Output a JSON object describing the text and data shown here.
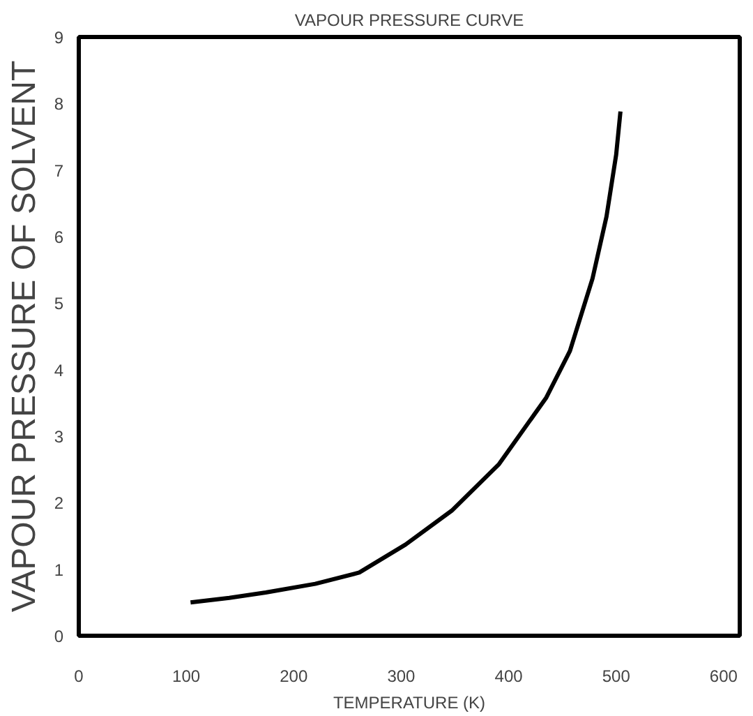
{
  "chart_data": {
    "type": "line",
    "title": "VAPOUR PRESSURE CURVE",
    "xlabel": "TEMPERATURE (K)",
    "ylabel": "VAPOUR PRESSURE OF SOLVENT",
    "xlim": [
      0,
      615
    ],
    "ylim": [
      0,
      9
    ],
    "xticks": [
      0,
      100,
      200,
      300,
      400,
      500,
      600
    ],
    "yticks": [
      0,
      1,
      2,
      3,
      4,
      5,
      6,
      7,
      8,
      9
    ],
    "grid": false,
    "marker": "none",
    "line_style": "solid",
    "series": [
      {
        "color": "#000000",
        "x": [
          104,
          140,
          174,
          220,
          261,
          304,
          347,
          391,
          435,
          457,
          478,
          491,
          500,
          504
        ],
        "values": [
          0.5,
          0.57,
          0.65,
          0.78,
          0.95,
          1.37,
          1.88,
          2.58,
          3.58,
          4.28,
          5.37,
          6.3,
          7.23,
          7.88
        ]
      }
    ]
  }
}
